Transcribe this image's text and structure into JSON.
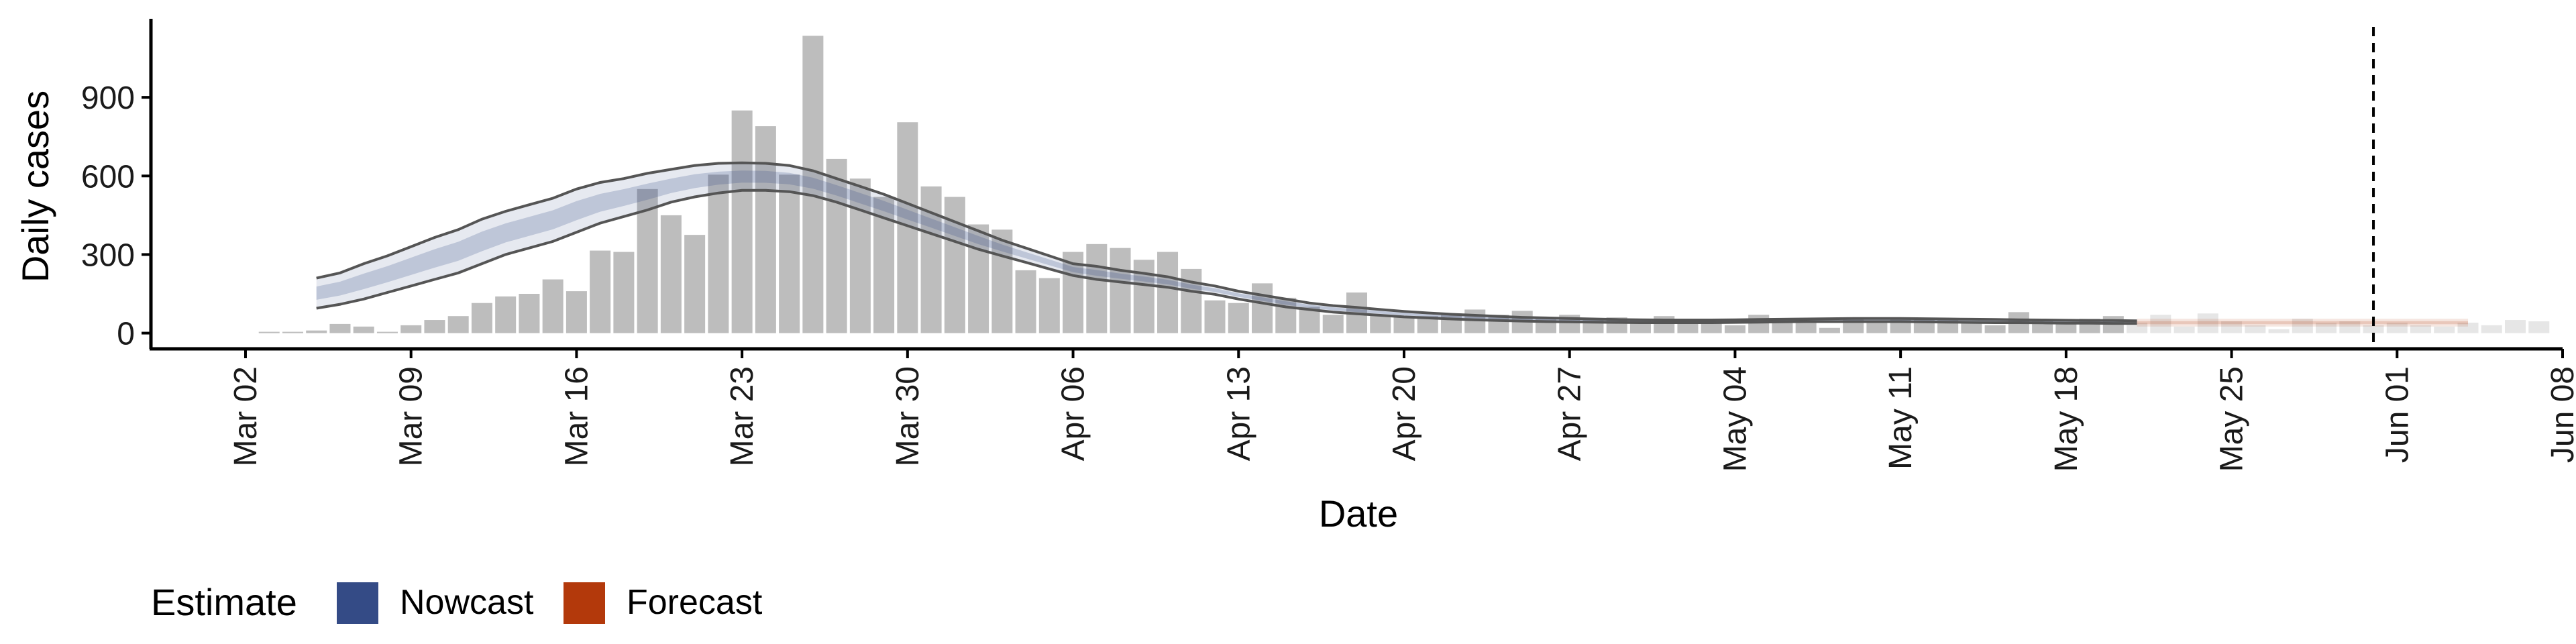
{
  "chart_data": {
    "type": "bar",
    "xlabel": "Date",
    "ylabel": "Daily cases",
    "x_ticks": [
      "Mar 02",
      "Mar 09",
      "Mar 16",
      "Mar 23",
      "Mar 30",
      "Apr 06",
      "Apr 13",
      "Apr 20",
      "Apr 27",
      "May 04",
      "May 11",
      "May 18",
      "May 25",
      "Jun 01",
      "Jun 08"
    ],
    "y_ticks": [
      "0",
      "300",
      "600",
      "900"
    ],
    "ylim": [
      -60,
      1200
    ],
    "xlim": [
      "2020-02-27",
      "2020-06-08"
    ],
    "grid": false,
    "legend": {
      "title": "Estimate",
      "position": "bottom-left",
      "entries": [
        {
          "label": "Nowcast",
          "color": "#344b86"
        },
        {
          "label": "Forecast",
          "color": "#b3390b"
        }
      ]
    },
    "colors": {
      "bars_nowcast": "#bdbdbd",
      "bars_forecast": "#e6e6e6",
      "nowcast_ribbon": "#344b86",
      "forecast_ribbon": "#b3390b",
      "bound_lines": "#555555"
    },
    "vline_date": "2020-05-31",
    "bars": {
      "start_date": "2020-03-03",
      "values": [
        5,
        5,
        10,
        35,
        25,
        5,
        30,
        50,
        65,
        115,
        140,
        150,
        205,
        160,
        315,
        310,
        550,
        450,
        375,
        605,
        850,
        790,
        605,
        1135,
        665,
        590,
        520,
        805,
        560,
        520,
        415,
        395,
        240,
        210,
        310,
        340,
        325,
        280,
        310,
        245,
        125,
        115,
        190,
        135,
        100,
        70,
        155,
        70,
        65,
        65,
        75,
        90,
        70,
        85,
        60,
        70,
        55,
        60,
        55,
        65,
        50,
        55,
        30,
        70,
        50,
        45,
        20,
        55,
        40,
        60,
        50,
        55,
        45,
        30,
        80,
        45,
        40,
        55,
        65,
        40,
        70,
        25,
        75,
        45,
        30,
        15,
        55,
        40,
        45,
        30,
        40,
        30,
        25,
        40,
        30,
        50,
        45
      ],
      "forecast_from": "2020-05-21"
    },
    "nowcast_band": {
      "start_date": "2020-03-05",
      "end_date": "2020-05-21",
      "outer_upper": [
        210,
        230,
        265,
        295,
        330,
        365,
        395,
        435,
        465,
        490,
        515,
        550,
        575,
        590,
        610,
        625,
        640,
        648,
        650,
        648,
        640,
        620,
        590,
        560,
        530,
        495,
        460,
        425,
        390,
        355,
        325,
        295,
        265,
        255,
        240,
        228,
        215,
        195,
        180,
        160,
        145,
        130,
        115,
        105,
        98,
        90,
        83,
        77,
        72,
        68,
        64,
        60,
        58,
        56,
        54,
        52,
        51,
        50,
        50,
        50,
        51,
        52,
        53,
        54,
        55,
        56,
        56,
        56,
        55,
        54,
        53,
        52,
        51,
        50,
        49,
        48,
        48,
        47
      ],
      "outer_lower": [
        95,
        110,
        130,
        155,
        180,
        205,
        230,
        265,
        300,
        325,
        350,
        385,
        420,
        445,
        470,
        500,
        520,
        535,
        545,
        545,
        540,
        525,
        500,
        470,
        440,
        410,
        380,
        350,
        320,
        295,
        270,
        245,
        220,
        205,
        195,
        185,
        175,
        160,
        148,
        130,
        115,
        100,
        90,
        80,
        74,
        68,
        62,
        58,
        54,
        51,
        48,
        46,
        44,
        43,
        42,
        41,
        40,
        40,
        40,
        40,
        41,
        42,
        43,
        44,
        44,
        44,
        44,
        44,
        43,
        42,
        41,
        40,
        40,
        39,
        38,
        38,
        37,
        37
      ]
    },
    "forecast_band": {
      "start_date": "2020-05-21",
      "end_date": "2020-06-04",
      "upper": 55,
      "lower": 25
    }
  }
}
